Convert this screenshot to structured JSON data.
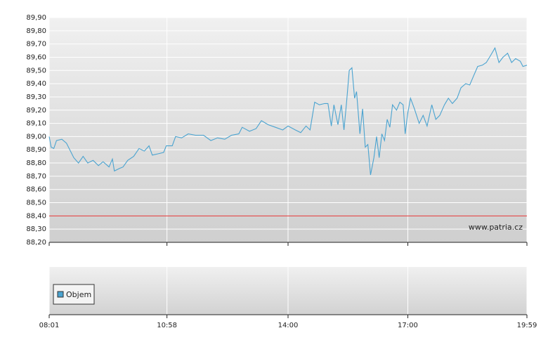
{
  "chart_data": {
    "type": "line",
    "x": [
      "08:01",
      "08:04",
      "08:08",
      "08:12",
      "08:20",
      "08:27",
      "08:33",
      "08:38",
      "08:45",
      "08:52",
      "08:59",
      "09:07",
      "09:15",
      "09:22",
      "09:31",
      "09:36",
      "09:39",
      "09:47",
      "09:52",
      "09:59",
      "10:08",
      "10:16",
      "10:24",
      "10:31",
      "10:36",
      "10:45",
      "10:53",
      "10:57",
      "11:06",
      "11:11",
      "11:20",
      "11:30",
      "11:41",
      "11:53",
      "12:04",
      "12:14",
      "12:25",
      "12:35",
      "12:46",
      "12:51",
      "13:02",
      "13:12",
      "13:20",
      "13:30",
      "13:41",
      "13:52",
      "14:00",
      "14:11",
      "14:19",
      "14:27",
      "14:33",
      "14:40",
      "14:47",
      "14:55",
      "15:00",
      "15:05",
      "15:09",
      "15:15",
      "15:20",
      "15:24",
      "15:28",
      "15:32",
      "15:36",
      "15:40",
      "15:43",
      "15:48",
      "15:52",
      "15:56",
      "16:00",
      "16:04",
      "16:09",
      "16:13",
      "16:17",
      "16:21",
      "16:25",
      "16:29",
      "16:33",
      "16:37",
      "16:43",
      "16:48",
      "16:53",
      "16:56",
      "17:00",
      "17:04",
      "17:10",
      "17:17",
      "17:23",
      "17:29",
      "17:36",
      "17:42",
      "17:48",
      "17:55",
      "18:01",
      "18:07",
      "18:14",
      "18:20",
      "18:27",
      "18:33",
      "18:39",
      "18:45",
      "18:52",
      "18:58",
      "19:04",
      "19:11",
      "19:17",
      "19:23",
      "19:30",
      "19:36",
      "19:42",
      "19:49",
      "19:53",
      "19:59"
    ],
    "series": [
      {
        "color": "#4aa3d0",
        "values": [
          89.0,
          88.92,
          88.91,
          88.97,
          88.98,
          88.95,
          88.89,
          88.84,
          88.8,
          88.85,
          88.8,
          88.82,
          88.78,
          88.81,
          88.77,
          88.83,
          88.74,
          88.76,
          88.77,
          88.82,
          88.85,
          88.91,
          88.89,
          88.93,
          88.86,
          88.87,
          88.88,
          88.93,
          88.93,
          89.0,
          88.99,
          89.02,
          89.01,
          89.01,
          88.97,
          88.99,
          88.98,
          89.01,
          89.02,
          89.07,
          89.04,
          89.06,
          89.12,
          89.09,
          89.07,
          89.05,
          89.08,
          89.05,
          89.03,
          89.08,
          89.05,
          89.26,
          89.24,
          89.25,
          89.25,
          89.08,
          89.24,
          89.09,
          89.24,
          89.05,
          89.26,
          89.5,
          89.52,
          89.29,
          89.34,
          89.02,
          89.21,
          88.92,
          88.94,
          88.71,
          88.84,
          89.0,
          88.84,
          89.02,
          88.97,
          89.13,
          89.07,
          89.24,
          89.2,
          89.26,
          89.24,
          89.02,
          89.18,
          89.29,
          89.21,
          89.1,
          89.16,
          89.08,
          89.24,
          89.13,
          89.16,
          89.24,
          89.29,
          89.25,
          89.29,
          89.37,
          89.4,
          89.39,
          89.46,
          89.53,
          89.54,
          89.56,
          89.61,
          89.67,
          89.56,
          89.6,
          89.63,
          89.56,
          89.59,
          89.57,
          89.53,
          89.54
        ]
      }
    ],
    "xlim": [
      "08:01",
      "19:59"
    ],
    "xticks": [
      "08:01",
      "10:58",
      "14:00",
      "17:00",
      "19:59"
    ],
    "ylim": [
      88.2,
      89.9
    ],
    "yticks": [
      {
        "value": 88.2,
        "label": "88,20"
      },
      {
        "value": 88.3,
        "label": "88,30"
      },
      {
        "value": 88.4,
        "label": "88,40"
      },
      {
        "value": 88.5,
        "label": "88,50"
      },
      {
        "value": 88.6,
        "label": "88,60"
      },
      {
        "value": 88.7,
        "label": "88,70"
      },
      {
        "value": 88.8,
        "label": "88,80"
      },
      {
        "value": 88.9,
        "label": "88,90"
      },
      {
        "value": 89.0,
        "label": "89,00"
      },
      {
        "value": 89.1,
        "label": "89,10"
      },
      {
        "value": 89.2,
        "label": "89,20"
      },
      {
        "value": 89.3,
        "label": "89,30"
      },
      {
        "value": 89.4,
        "label": "89,40"
      },
      {
        "value": 89.5,
        "label": "89,50"
      },
      {
        "value": 89.6,
        "label": "89,60"
      },
      {
        "value": 89.7,
        "label": "89,70"
      },
      {
        "value": 89.8,
        "label": "89,80"
      },
      {
        "value": 89.9,
        "label": "89,90"
      }
    ],
    "reference_line": {
      "value": 88.4,
      "color": "#e03030"
    },
    "grid": true,
    "watermark": "www.patria.cz",
    "volume_panel": {
      "legend": "Objem",
      "color": "#4aa3d0"
    }
  }
}
